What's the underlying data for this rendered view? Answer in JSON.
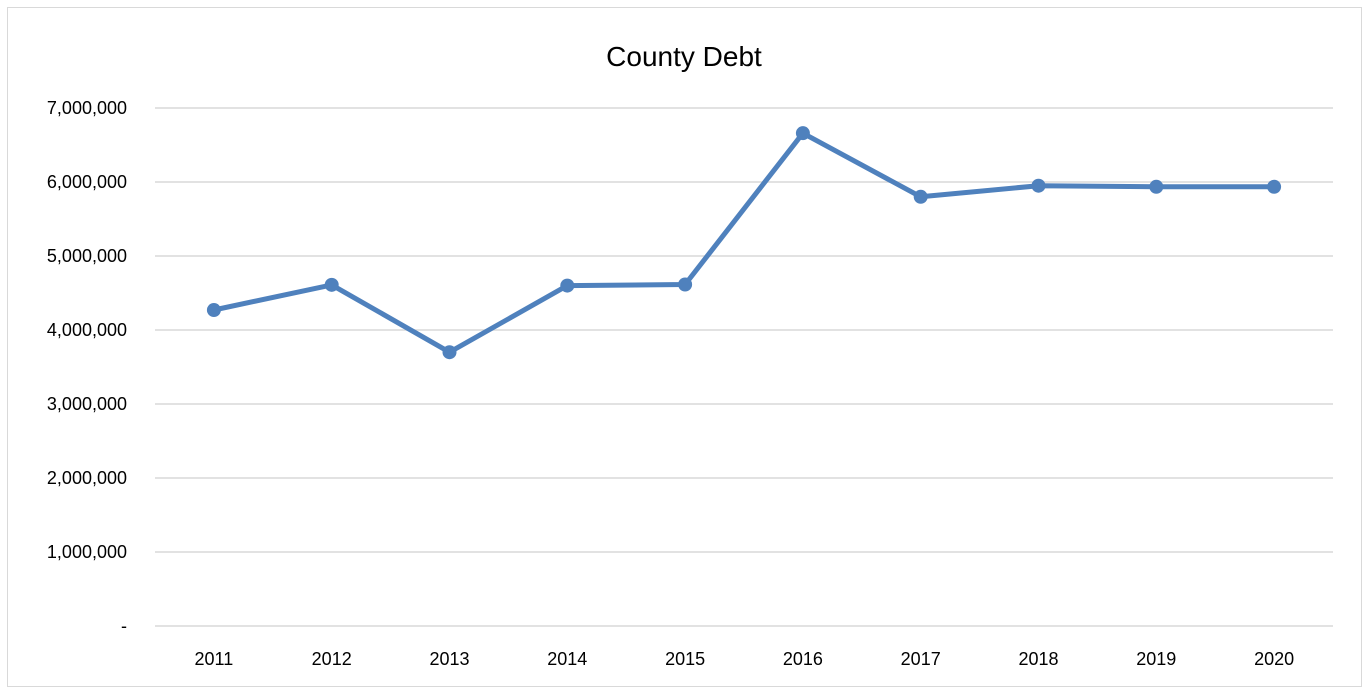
{
  "chart_data": {
    "type": "line",
    "title": "County Debt",
    "xlabel": "",
    "ylabel": "",
    "categories": [
      "2011",
      "2012",
      "2013",
      "2014",
      "2015",
      "2016",
      "2017",
      "2018",
      "2019",
      "2020"
    ],
    "series": [
      {
        "values": [
          4270000,
          4610000,
          3700000,
          4600000,
          4615000,
          6660000,
          5800000,
          5950000,
          5935000,
          5935000
        ]
      }
    ],
    "ylim": [
      0,
      7000000
    ],
    "yticks": [
      0,
      1000000,
      2000000,
      3000000,
      4000000,
      5000000,
      6000000,
      7000000
    ],
    "ytick_labels": [
      "-",
      "1,000,000",
      "2,000,000",
      "3,000,000",
      "4,000,000",
      "5,000,000",
      "6,000,000",
      "7,000,000"
    ],
    "grid": true,
    "legend": "none",
    "colors": {
      "line": "#4f81bd",
      "grid": "#d9d9d9",
      "axis": "#d9d9d9",
      "text": "#000000"
    }
  }
}
